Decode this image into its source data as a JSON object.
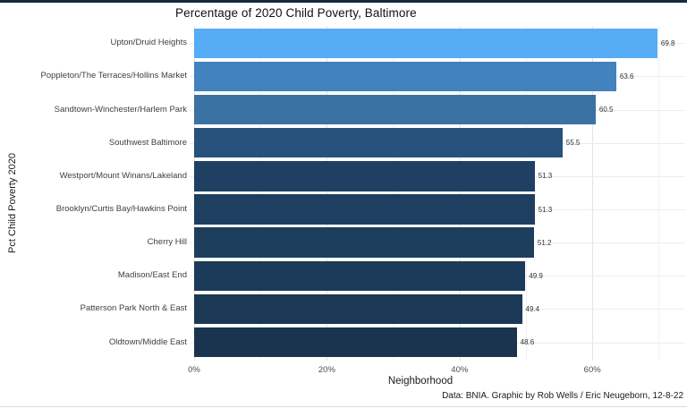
{
  "figure": {
    "title": "Percentage of 2020 Child Poverty, Baltimore",
    "caption": "Data: BNIA. Graphic by Rob Wells / Eric Neugeborn, 12-8-22",
    "top_border_color": "#152840",
    "bottom_hairline_color": "#d9d9d9"
  },
  "chart_data": {
    "type": "bar",
    "orientation": "horizontal",
    "title": "Percentage of 2020 Child Poverty, Baltimore",
    "xlabel": "Neighborhood",
    "ylabel": "Pct Child Poverty 2020",
    "categories": [
      "Upton/Druid Heights",
      "Poppleton/The Terraces/Hollins Market",
      "Sandtown-Winchester/Harlem Park",
      "Southwest Baltimore",
      "Westport/Mount Winans/Lakeland",
      "Brooklyn/Curtis Bay/Hawkins Point",
      "Cherry Hill",
      "Madison/East End",
      "Patterson Park North & East",
      "Oldtown/Middle East"
    ],
    "values": [
      69.8,
      63.6,
      60.5,
      55.5,
      51.3,
      51.3,
      51.2,
      49.9,
      49.4,
      48.6
    ],
    "value_labels": [
      "69.8",
      "63.6",
      "60.5",
      "55.5",
      "51.3",
      "51.3",
      "51.2",
      "49.9",
      "49.4",
      "48.6"
    ],
    "bar_colors": [
      "#56acf5",
      "#4182bf",
      "#3a73a3",
      "#28517c",
      "#1f4062",
      "#1f3f60",
      "#1e3e5e",
      "#1c3a59",
      "#1b3855",
      "#1a3450"
    ],
    "x_ticks": [
      {
        "value": 0,
        "label": "0%"
      },
      {
        "value": 20,
        "label": "20%"
      },
      {
        "value": 40,
        "label": "40%"
      },
      {
        "value": 60,
        "label": "60%"
      }
    ],
    "x_minor_ticks": [
      10,
      30,
      50,
      70
    ],
    "xlim": [
      0,
      74
    ],
    "grid": {
      "major_color": "#e3e3e3",
      "minor_color": "#f1f1f1",
      "row_color": "#ececec"
    },
    "legend": "none"
  }
}
